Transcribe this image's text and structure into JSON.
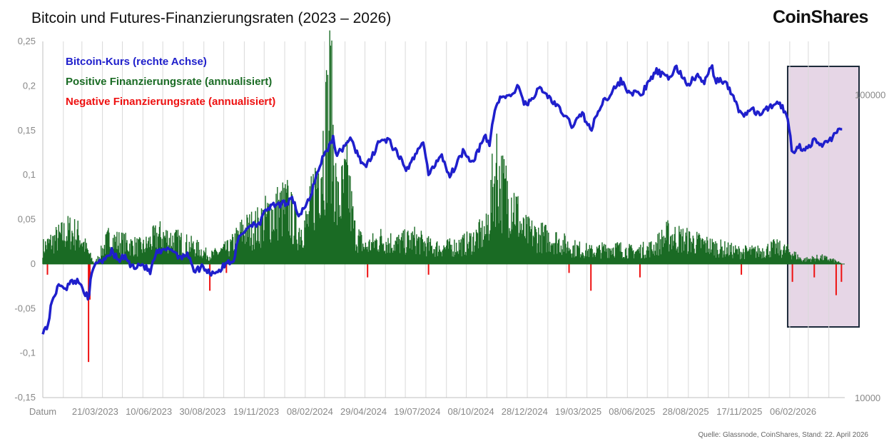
{
  "header": {
    "title": "Bitcoin und Futures-Finanzierungsraten (2023 – 2026)",
    "brand": "CoinShares"
  },
  "footer": {
    "source": "Quelle: Glassnode, CoinShares, Stand: 22. April 2026"
  },
  "colors": {
    "price_line": "#1f1fcc",
    "positive": "#1a6b24",
    "negative": "#ee1111",
    "highlight_fill": "#e6d6e6",
    "highlight_border": "#1c2a3a",
    "grid": "#d9d9d9"
  },
  "chart_data": {
    "type": "line",
    "title": "Bitcoin und Futures-Finanzierungsraten (2023 – 2026)",
    "x_axis_label": "Datum",
    "x_tick_labels": [
      "21/03/2023",
      "10/06/2023",
      "30/08/2023",
      "19/11/2023",
      "08/02/2024",
      "29/04/2024",
      "19/07/2024",
      "08/10/2024",
      "28/12/2024",
      "19/03/2025",
      "08/06/2025",
      "28/08/2025",
      "17/11/2025",
      "06/02/2026"
    ],
    "y_left": {
      "min": -0.15,
      "max": 0.25,
      "ticks": [
        "-0,15",
        "-0,1",
        "-0,05",
        "0",
        "0,05",
        "0,1",
        "0,15",
        "0,2",
        "0,25"
      ]
    },
    "y_right": {
      "scale": "log",
      "min": 10000,
      "max": 150000,
      "ticks": [
        "10000",
        "100000"
      ]
    },
    "legend": [
      "Bitcoin-Kurs (rechte Achse)",
      "Positive Finanzierungsrate (annualisiert)",
      "Negative Finanzierungsrate (annualisiert)"
    ],
    "legend_position": "top-left",
    "grid": "vertical",
    "highlight_range": {
      "from": "2026-01-31",
      "to": "2026-04-22"
    },
    "series": [
      {
        "name": "Bitcoin-Kurs (rechte Achse)",
        "axis": "right",
        "type": "line",
        "points": [
          [
            "2023-01-01",
            16600
          ],
          [
            "2023-01-08",
            17100
          ],
          [
            "2023-01-15",
            20800
          ],
          [
            "2023-01-22",
            22800
          ],
          [
            "2023-01-29",
            23700
          ],
          [
            "2023-02-05",
            23000
          ],
          [
            "2023-02-15",
            24300
          ],
          [
            "2023-02-22",
            24200
          ],
          [
            "2023-03-01",
            23500
          ],
          [
            "2023-03-08",
            21700
          ],
          [
            "2023-03-11",
            20200
          ],
          [
            "2023-03-14",
            24500
          ],
          [
            "2023-03-21",
            28000
          ],
          [
            "2023-04-01",
            28500
          ],
          [
            "2023-04-10",
            29800
          ],
          [
            "2023-04-15",
            30400
          ],
          [
            "2023-04-25",
            28300
          ],
          [
            "2023-05-05",
            29300
          ],
          [
            "2023-05-15",
            27000
          ],
          [
            "2023-05-30",
            27700
          ],
          [
            "2023-06-12",
            25900
          ],
          [
            "2023-06-21",
            30000
          ],
          [
            "2023-07-05",
            30500
          ],
          [
            "2023-07-13",
            31200
          ],
          [
            "2023-07-25",
            29300
          ],
          [
            "2023-08-10",
            29500
          ],
          [
            "2023-08-18",
            26000
          ],
          [
            "2023-08-30",
            27200
          ],
          [
            "2023-09-10",
            25800
          ],
          [
            "2023-09-25",
            26300
          ],
          [
            "2023-10-05",
            27800
          ],
          [
            "2023-10-16",
            28500
          ],
          [
            "2023-10-24",
            33900
          ],
          [
            "2023-11-10",
            37300
          ],
          [
            "2023-11-25",
            37800
          ],
          [
            "2023-12-05",
            42000
          ],
          [
            "2023-12-15",
            42900
          ],
          [
            "2023-12-27",
            43400
          ],
          [
            "2024-01-05",
            44000
          ],
          [
            "2024-01-11",
            46600
          ],
          [
            "2024-01-23",
            39500
          ],
          [
            "2024-02-08",
            45300
          ],
          [
            "2024-02-15",
            52000
          ],
          [
            "2024-02-28",
            62500
          ],
          [
            "2024-03-05",
            66000
          ],
          [
            "2024-03-14",
            72000
          ],
          [
            "2024-03-20",
            63000
          ],
          [
            "2024-04-08",
            71600
          ],
          [
            "2024-04-20",
            64000
          ],
          [
            "2024-05-01",
            57500
          ],
          [
            "2024-05-10",
            61000
          ],
          [
            "2024-05-21",
            70000
          ],
          [
            "2024-06-05",
            71000
          ],
          [
            "2024-06-25",
            60500
          ],
          [
            "2024-07-05",
            56000
          ],
          [
            "2024-07-20",
            67000
          ],
          [
            "2024-07-29",
            69000
          ],
          [
            "2024-08-05",
            54000
          ],
          [
            "2024-08-24",
            64000
          ],
          [
            "2024-09-06",
            53700
          ],
          [
            "2024-09-27",
            65800
          ],
          [
            "2024-10-10",
            60000
          ],
          [
            "2024-10-29",
            72500
          ],
          [
            "2024-11-05",
            68500
          ],
          [
            "2024-11-12",
            88000
          ],
          [
            "2024-11-22",
            98900
          ],
          [
            "2024-12-05",
            98000
          ],
          [
            "2024-12-17",
            106200
          ],
          [
            "2024-12-30",
            92000
          ],
          [
            "2025-01-07",
            97000
          ],
          [
            "2025-01-20",
            105000
          ],
          [
            "2025-02-05",
            97000
          ],
          [
            "2025-02-25",
            86000
          ],
          [
            "2025-03-10",
            79000
          ],
          [
            "2025-03-25",
            87000
          ],
          [
            "2025-04-07",
            76000
          ],
          [
            "2025-04-22",
            93000
          ],
          [
            "2025-05-10",
            103000
          ],
          [
            "2025-05-22",
            111000
          ],
          [
            "2025-06-05",
            101500
          ],
          [
            "2025-06-22",
            100500
          ],
          [
            "2025-07-03",
            109000
          ],
          [
            "2025-07-14",
            120000
          ],
          [
            "2025-08-01",
            113000
          ],
          [
            "2025-08-14",
            123000
          ],
          [
            "2025-08-31",
            108000
          ],
          [
            "2025-09-15",
            115500
          ],
          [
            "2025-09-25",
            109000
          ],
          [
            "2025-10-06",
            124700
          ],
          [
            "2025-10-11",
            112000
          ],
          [
            "2025-10-25",
            111000
          ],
          [
            "2025-11-05",
            101000
          ],
          [
            "2025-11-21",
            85000
          ],
          [
            "2025-12-05",
            89500
          ],
          [
            "2025-12-18",
            86000
          ],
          [
            "2026-01-05",
            92000
          ],
          [
            "2026-01-14",
            95500
          ],
          [
            "2026-01-25",
            88000
          ],
          [
            "2026-02-01",
            77000
          ],
          [
            "2026-02-05",
            63500
          ],
          [
            "2026-02-12",
            68000
          ],
          [
            "2026-02-25",
            66000
          ],
          [
            "2026-03-10",
            70500
          ],
          [
            "2026-03-20",
            68000
          ],
          [
            "2026-04-05",
            72000
          ],
          [
            "2026-04-15",
            75500
          ],
          [
            "2026-04-22",
            78500
          ]
        ]
      },
      {
        "name": "Positive Finanzierungsrate (annualisiert)",
        "axis": "left",
        "type": "area",
        "points": [
          [
            "2023-01-01",
            0.02
          ],
          [
            "2023-01-20",
            0.03
          ],
          [
            "2023-02-10",
            0.04
          ],
          [
            "2023-02-25",
            0.035
          ],
          [
            "2023-03-20",
            0.0
          ],
          [
            "2023-04-10",
            0.03
          ],
          [
            "2023-05-05",
            0.025
          ],
          [
            "2023-06-01",
            0.02
          ],
          [
            "2023-06-25",
            0.035
          ],
          [
            "2023-07-15",
            0.03
          ],
          [
            "2023-08-20",
            0.02
          ],
          [
            "2023-09-10",
            0.01
          ],
          [
            "2023-10-10",
            0.02
          ],
          [
            "2023-10-30",
            0.04
          ],
          [
            "2023-11-20",
            0.045
          ],
          [
            "2023-12-10",
            0.06
          ],
          [
            "2024-01-05",
            0.07
          ],
          [
            "2024-01-20",
            0.04
          ],
          [
            "2024-02-05",
            0.05
          ],
          [
            "2024-02-15",
            0.09
          ],
          [
            "2024-03-01",
            0.15
          ],
          [
            "2024-03-10",
            0.2
          ],
          [
            "2024-03-20",
            0.07
          ],
          [
            "2024-04-05",
            0.1
          ],
          [
            "2024-04-15",
            0.04
          ],
          [
            "2024-05-01",
            0.02
          ],
          [
            "2024-05-25",
            0.03
          ],
          [
            "2024-06-20",
            0.025
          ],
          [
            "2024-07-15",
            0.03
          ],
          [
            "2024-08-10",
            0.02
          ],
          [
            "2024-09-05",
            0.02
          ],
          [
            "2024-10-01",
            0.025
          ],
          [
            "2024-11-01",
            0.04
          ],
          [
            "2024-11-15",
            0.12
          ],
          [
            "2024-11-25",
            0.09
          ],
          [
            "2024-12-10",
            0.08
          ],
          [
            "2024-12-25",
            0.04
          ],
          [
            "2025-01-15",
            0.035
          ],
          [
            "2025-02-10",
            0.03
          ],
          [
            "2025-03-10",
            0.02
          ],
          [
            "2025-04-10",
            0.015
          ],
          [
            "2025-05-10",
            0.02
          ],
          [
            "2025-06-10",
            0.015
          ],
          [
            "2025-07-10",
            0.02
          ],
          [
            "2025-08-01",
            0.035
          ],
          [
            "2025-08-25",
            0.03
          ],
          [
            "2025-09-20",
            0.025
          ],
          [
            "2025-10-15",
            0.02
          ],
          [
            "2025-11-15",
            0.015
          ],
          [
            "2025-12-15",
            0.015
          ],
          [
            "2026-01-10",
            0.02
          ],
          [
            "2026-02-01",
            0.015
          ],
          [
            "2026-02-20",
            0.005
          ],
          [
            "2026-03-20",
            0.008
          ],
          [
            "2026-04-10",
            0.004
          ],
          [
            "2026-04-22",
            0.0
          ]
        ]
      },
      {
        "name": "Negative Finanzierungsrate (annualisiert)",
        "axis": "left",
        "type": "area",
        "points": [
          [
            "2023-01-08",
            -0.012
          ],
          [
            "2023-03-11",
            -0.11
          ],
          [
            "2023-03-13",
            -0.04
          ],
          [
            "2023-09-10",
            -0.03
          ],
          [
            "2023-10-05",
            -0.01
          ],
          [
            "2024-05-05",
            -0.015
          ],
          [
            "2024-08-05",
            -0.012
          ],
          [
            "2025-03-05",
            -0.01
          ],
          [
            "2025-04-07",
            -0.03
          ],
          [
            "2025-06-20",
            -0.015
          ],
          [
            "2025-11-20",
            -0.012
          ],
          [
            "2026-02-05",
            -0.02
          ],
          [
            "2026-03-10",
            -0.015
          ],
          [
            "2026-04-12",
            -0.035
          ],
          [
            "2026-04-20",
            -0.02
          ]
        ]
      }
    ]
  }
}
